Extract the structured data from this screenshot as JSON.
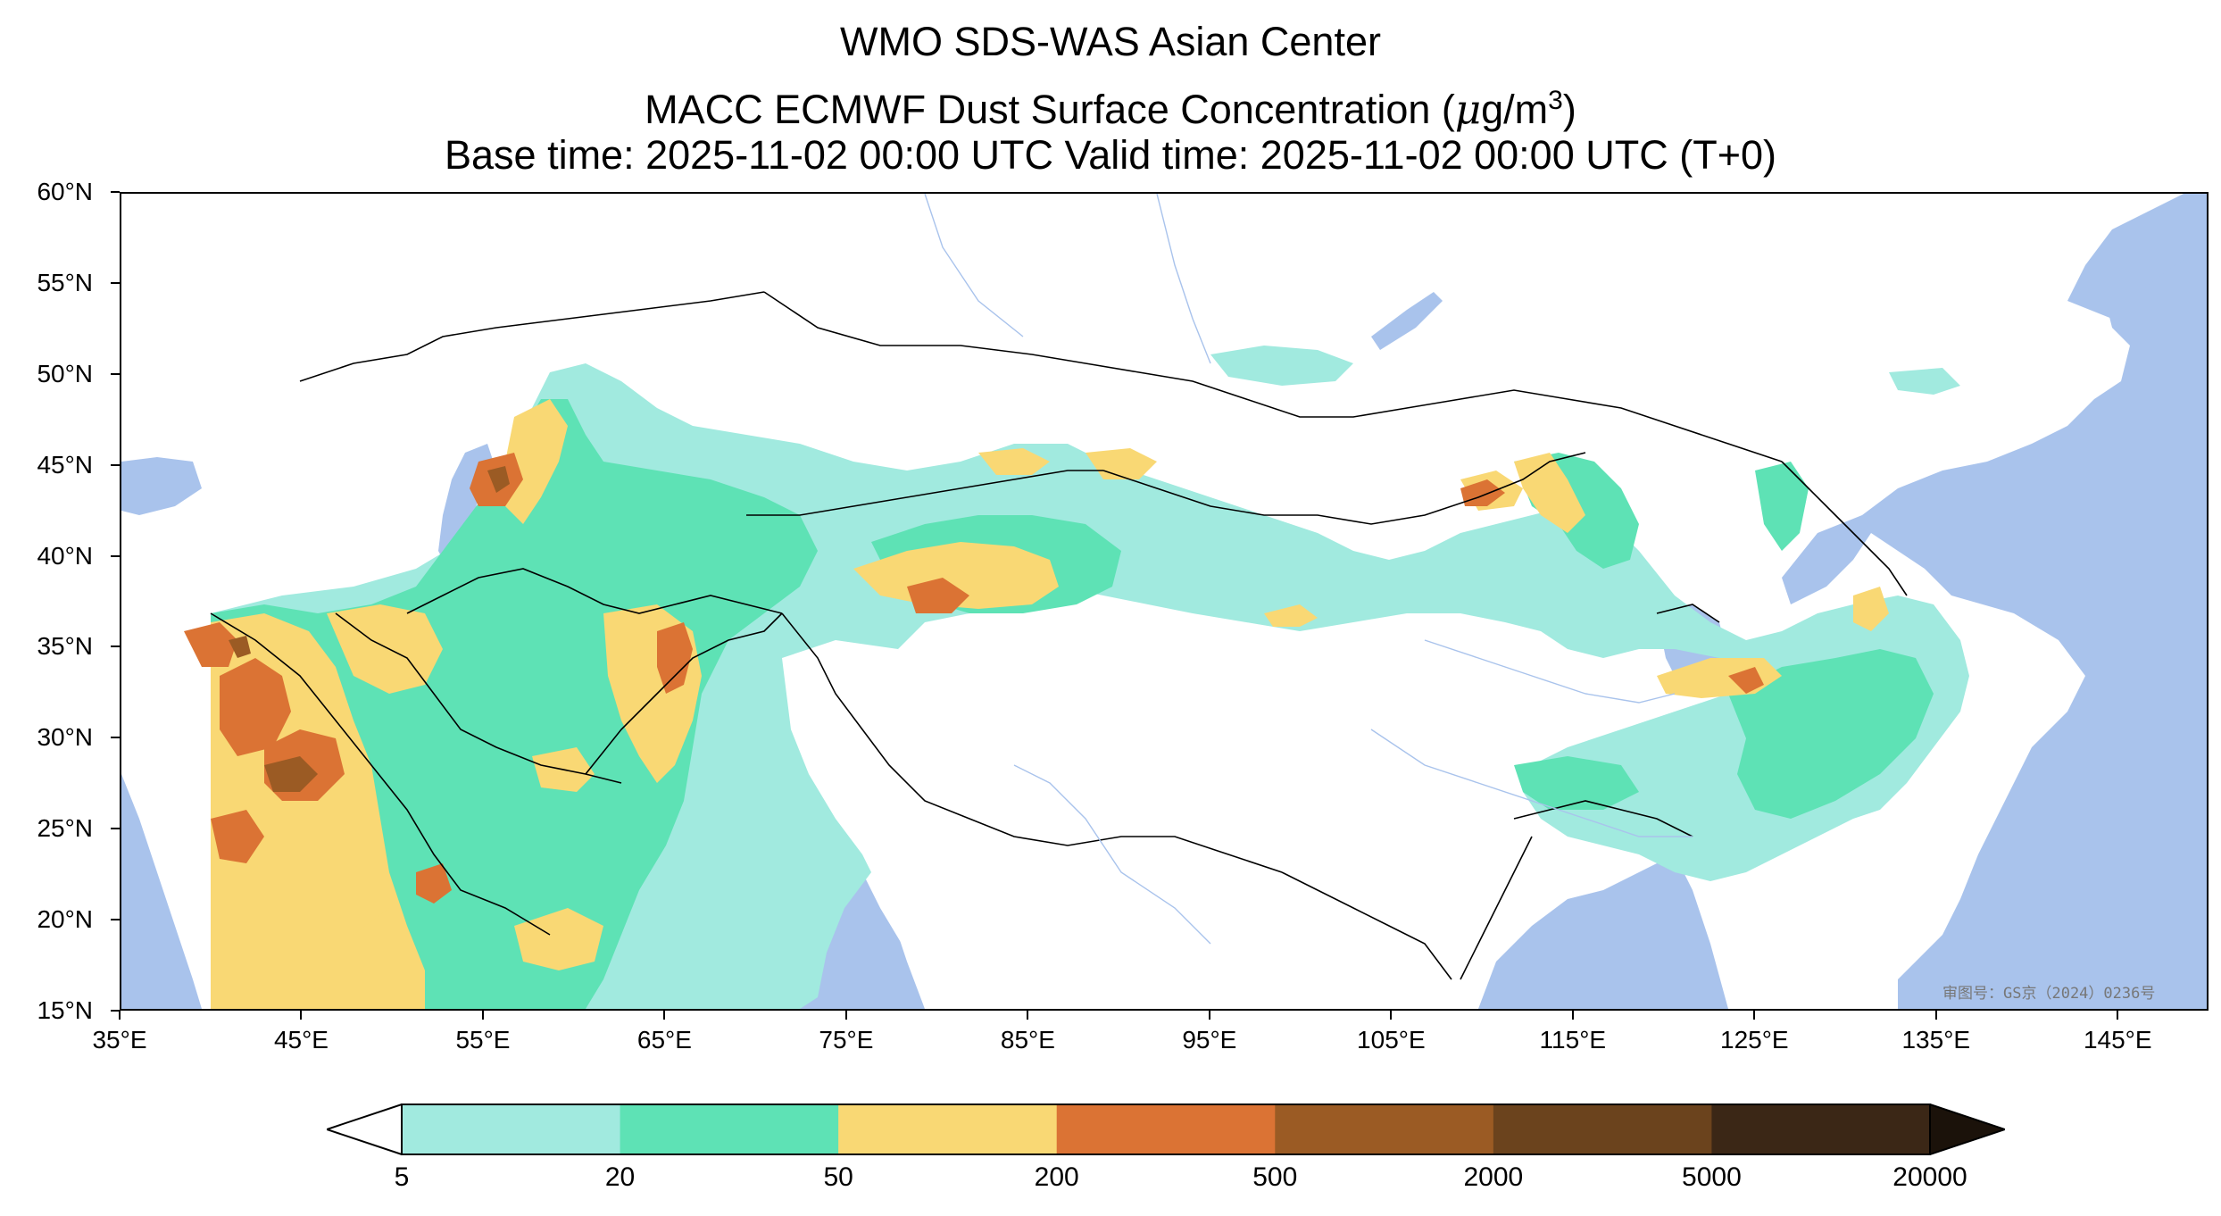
{
  "title": {
    "line1": "WMO SDS-WAS Asian Center",
    "line2_prefix": "MACC ECMWF Dust Surface Concentration (",
    "line2_unit_mu": "μ",
    "line2_unit_rest": "g/m",
    "line2_unit_exp": "3",
    "line2_suffix": ")",
    "line3": "Base time: 2025-11-02 00:00 UTC Valid time: 2025-11-02 00:00 UTC (T+0)"
  },
  "map": {
    "lon_range": [
      35,
      150
    ],
    "lat_range": [
      15,
      60
    ],
    "lat_labels": [
      "60°N",
      "55°N",
      "50°N",
      "45°N",
      "40°N",
      "35°N",
      "30°N",
      "25°N",
      "20°N",
      "15°N"
    ],
    "lat_values": [
      60,
      55,
      50,
      45,
      40,
      35,
      30,
      25,
      20,
      15
    ],
    "lon_labels": [
      "35°E",
      "45°E",
      "55°E",
      "65°E",
      "75°E",
      "85°E",
      "95°E",
      "105°E",
      "115°E",
      "125°E",
      "135°E",
      "145°E"
    ],
    "lon_values": [
      35,
      45,
      55,
      65,
      75,
      85,
      95,
      105,
      115,
      125,
      135,
      145
    ],
    "approval_text": "审图号：GS京（2024）0236号",
    "ocean_color": "#a9c3ec",
    "border_color": "#000000",
    "river_color": "#a9c3ec"
  },
  "colorbar": {
    "levels": [
      "5",
      "20",
      "50",
      "200",
      "500",
      "2000",
      "5000",
      "20000"
    ],
    "colors": [
      "#a1eadf",
      "#5ee2b5",
      "#f9d874",
      "#db7334",
      "#9b5b24",
      "#6b431d",
      "#3b2716"
    ],
    "under_color": "#ffffff",
    "over_color": "#1b120a"
  }
}
